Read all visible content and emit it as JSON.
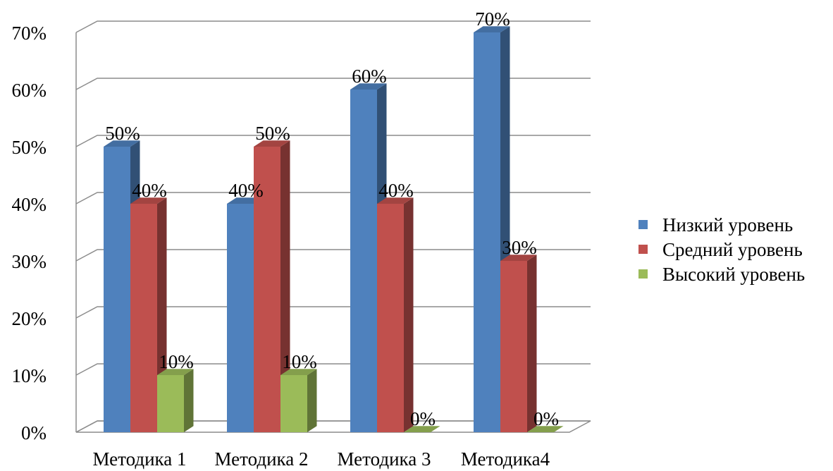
{
  "chart_data": {
    "type": "bar",
    "title": "",
    "xlabel": "",
    "ylabel": "",
    "categories": [
      "Методика 1",
      "Методика 2",
      "Методика 3",
      "Методика4"
    ],
    "series": [
      {
        "name": "Низкий уровень",
        "color": "#4F81BD",
        "values": [
          50,
          40,
          60,
          70
        ]
      },
      {
        "name": "Средний уровень",
        "color": "#C0504D",
        "values": [
          40,
          50,
          40,
          30
        ]
      },
      {
        "name": "Высокий уровень",
        "color": "#9BBB59",
        "values": [
          10,
          10,
          0,
          0
        ]
      }
    ],
    "data_labels": [
      [
        "50%",
        "40%",
        "60%",
        "70%"
      ],
      [
        "40%",
        "50%",
        "40%",
        "30%"
      ],
      [
        "10%",
        "10%",
        "0%",
        "0%"
      ]
    ],
    "ylim": [
      0,
      70
    ],
    "y_ticks": [
      0,
      10,
      20,
      30,
      40,
      50,
      60,
      70
    ],
    "y_tick_labels": [
      "0%",
      "10%",
      "20%",
      "30%",
      "40%",
      "50%",
      "60%",
      "70%"
    ],
    "unit": "%",
    "grid": true,
    "style": "3d-clustered-column",
    "legend_position": "right"
  }
}
